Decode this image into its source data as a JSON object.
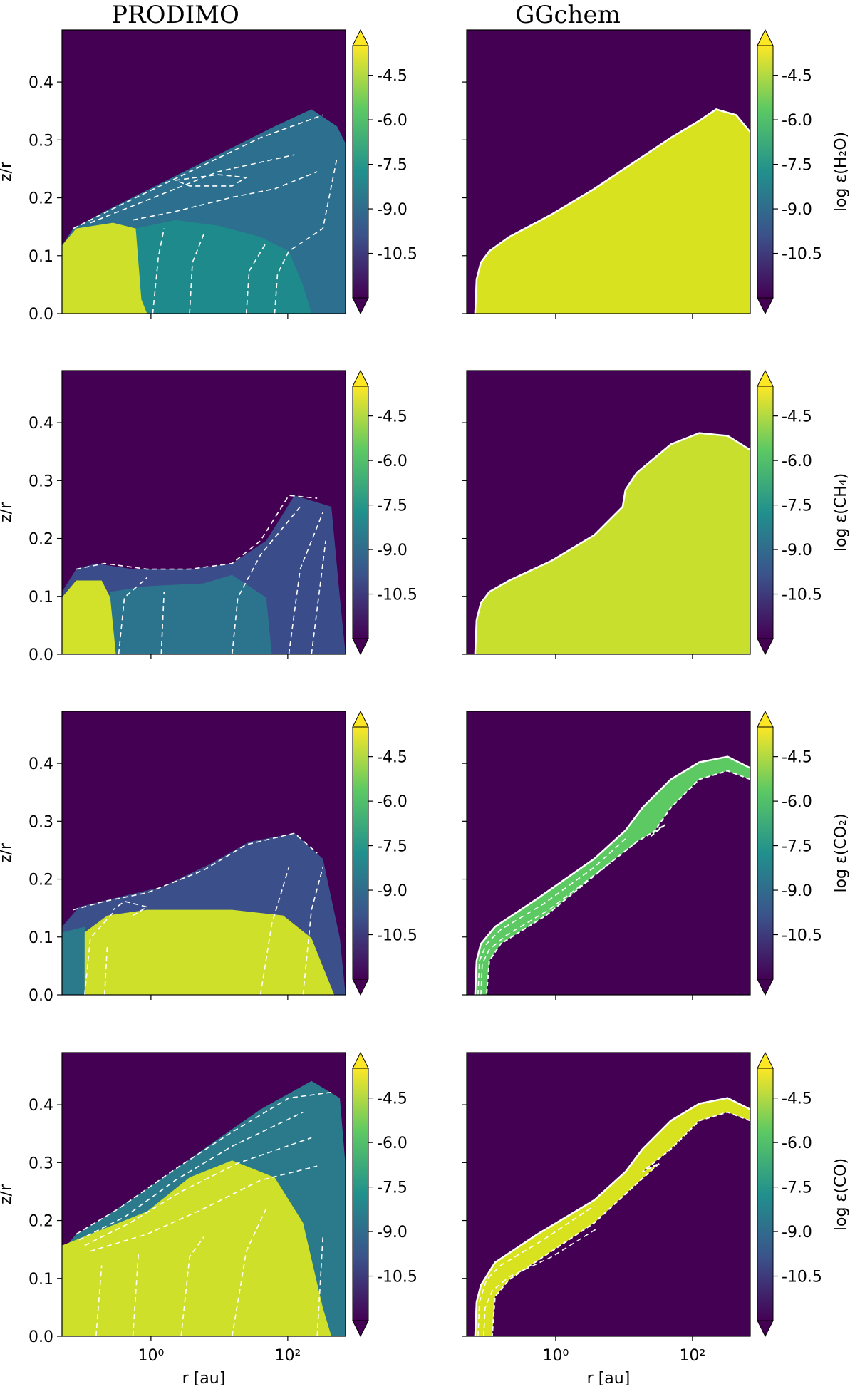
{
  "columns": [
    "PRODIMO",
    "GGchem"
  ],
  "colormap": {
    "name": "viridis",
    "stops": [
      "#440154",
      "#3b528b",
      "#21908d",
      "#5dc963",
      "#fde725"
    ],
    "contour_color": "#ffffff",
    "contour_style": "dashed"
  },
  "chart_data": [
    {
      "type": "heatmap",
      "column": "PRODIMO",
      "species": "H2O",
      "title": "PRODIMO",
      "xlabel": "",
      "ylabel": "z/r",
      "x_scale": "log",
      "xlim": [
        0.05,
        700
      ],
      "ylim": [
        0,
        0.49
      ],
      "yticks": [
        "0.0",
        "0.1",
        "0.2",
        "0.3",
        "0.4"
      ],
      "xticks": [],
      "colorbar": {
        "label": "",
        "ticks": [
          "-4.5",
          "-6.0",
          "-7.5",
          "-9.0",
          "-10.5"
        ],
        "range": [
          -12,
          -3.5
        ],
        "extend": "both"
      }
    },
    {
      "type": "heatmap",
      "column": "GGchem",
      "species": "H2O",
      "title": "GGchem",
      "xlabel": "",
      "ylabel": "",
      "x_scale": "log",
      "xlim": [
        0.05,
        700
      ],
      "ylim": [
        0,
        0.49
      ],
      "yticks": [],
      "xticks": [],
      "colorbar": {
        "label": "log ε(H₂O)",
        "ticks": [
          "-4.5",
          "-6.0",
          "-7.5",
          "-9.0",
          "-10.5"
        ],
        "range": [
          -12,
          -3.5
        ],
        "extend": "both"
      }
    },
    {
      "type": "heatmap",
      "column": "PRODIMO",
      "species": "CH4",
      "title": "",
      "xlabel": "",
      "ylabel": "z/r",
      "x_scale": "log",
      "xlim": [
        0.05,
        700
      ],
      "ylim": [
        0,
        0.49
      ],
      "yticks": [
        "0.0",
        "0.1",
        "0.2",
        "0.3",
        "0.4"
      ],
      "xticks": [],
      "colorbar": {
        "label": "",
        "ticks": [
          "-4.5",
          "-6.0",
          "-7.5",
          "-9.0",
          "-10.5"
        ],
        "range": [
          -12,
          -3.5
        ],
        "extend": "both"
      }
    },
    {
      "type": "heatmap",
      "column": "GGchem",
      "species": "CH4",
      "title": "",
      "xlabel": "",
      "ylabel": "",
      "x_scale": "log",
      "xlim": [
        0.05,
        700
      ],
      "ylim": [
        0,
        0.49
      ],
      "yticks": [],
      "xticks": [],
      "colorbar": {
        "label": "log ε(CH₄)",
        "ticks": [
          "-4.5",
          "-6.0",
          "-7.5",
          "-9.0",
          "-10.5"
        ],
        "range": [
          -12,
          -3.5
        ],
        "extend": "both"
      }
    },
    {
      "type": "heatmap",
      "column": "PRODIMO",
      "species": "CO2",
      "title": "",
      "xlabel": "",
      "ylabel": "z/r",
      "x_scale": "log",
      "xlim": [
        0.05,
        700
      ],
      "ylim": [
        0,
        0.49
      ],
      "yticks": [
        "0.0",
        "0.1",
        "0.2",
        "0.3",
        "0.4"
      ],
      "xticks": [],
      "colorbar": {
        "label": "",
        "ticks": [
          "-4.5",
          "-6.0",
          "-7.5",
          "-9.0",
          "-10.5"
        ],
        "range": [
          -12,
          -3.5
        ],
        "extend": "both"
      }
    },
    {
      "type": "heatmap",
      "column": "GGchem",
      "species": "CO2",
      "title": "",
      "xlabel": "",
      "ylabel": "",
      "x_scale": "log",
      "xlim": [
        0.05,
        700
      ],
      "ylim": [
        0,
        0.49
      ],
      "yticks": [],
      "xticks": [],
      "colorbar": {
        "label": "log ε(CO₂)",
        "ticks": [
          "-4.5",
          "-6.0",
          "-7.5",
          "-9.0",
          "-10.5"
        ],
        "range": [
          -12,
          -3.5
        ],
        "extend": "both"
      }
    },
    {
      "type": "heatmap",
      "column": "PRODIMO",
      "species": "CO",
      "title": "",
      "xlabel": "r [au]",
      "ylabel": "z/r",
      "x_scale": "log",
      "xlim": [
        0.05,
        700
      ],
      "ylim": [
        0,
        0.49
      ],
      "yticks": [
        "0.0",
        "0.1",
        "0.2",
        "0.3",
        "0.4"
      ],
      "xticks": [
        "10⁰",
        "10²"
      ],
      "colorbar": {
        "label": "",
        "ticks": [
          "-4.5",
          "-6.0",
          "-7.5",
          "-9.0",
          "-10.5"
        ],
        "range": [
          -12,
          -3.5
        ],
        "extend": "both"
      }
    },
    {
      "type": "heatmap",
      "column": "GGchem",
      "species": "CO",
      "title": "",
      "xlabel": "r [au]",
      "ylabel": "",
      "x_scale": "log",
      "xlim": [
        0.05,
        700
      ],
      "ylim": [
        0,
        0.49
      ],
      "yticks": [],
      "xticks": [
        "10⁰",
        "10²"
      ],
      "colorbar": {
        "label": "log ε(CO)",
        "ticks": [
          "-4.5",
          "-6.0",
          "-7.5",
          "-9.0",
          "-10.5"
        ],
        "range": [
          -12,
          -3.5
        ],
        "extend": "both"
      }
    }
  ]
}
